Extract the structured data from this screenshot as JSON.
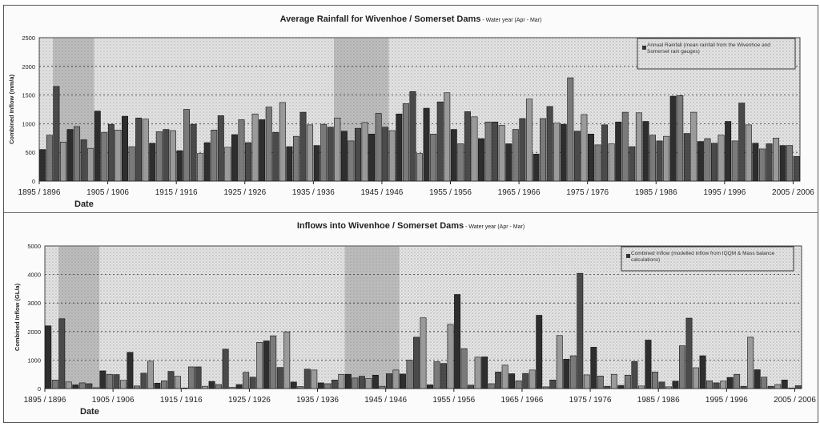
{
  "chart_data": [
    {
      "type": "bar",
      "title": "Average Rainfall for Wivenhoe / Somerset Dams",
      "subtitle": " - Water year (Apr - Mar)",
      "xlabel": "Date",
      "ylabel": "Combined Inflow (mm/a)",
      "ylim": [
        0,
        2500
      ],
      "yticks": [
        0,
        500,
        1000,
        1500,
        2000,
        2500
      ],
      "xtick_labels": [
        "1895 / 1896",
        "1905 / 1906",
        "1915 / 1916",
        "1925 / 1926",
        "1935 / 1936",
        "1945 / 1946",
        "1955 / 1956",
        "1965 / 1966",
        "1975 / 1976",
        "1985 / 1986",
        "1995 / 1996",
        "2005 / 2006"
      ],
      "legend": "Annual Rainfall (mean rainfall from the Wivenhoe and Somerset rain gauges)",
      "legend_position": "top-right",
      "grid": true,
      "shaded_periods": [
        [
          1897,
          1902
        ],
        [
          1938,
          1945
        ]
      ],
      "start_year": 1895,
      "values": [
        550,
        800,
        1650,
        680,
        900,
        950,
        720,
        570,
        1220,
        850,
        990,
        890,
        1130,
        600,
        1100,
        1080,
        660,
        860,
        900,
        880,
        530,
        1250,
        990,
        480,
        670,
        890,
        1140,
        590,
        810,
        1070,
        670,
        1170,
        1070,
        1290,
        850,
        1370,
        600,
        780,
        1200,
        980,
        620,
        990,
        940,
        1100,
        870,
        700,
        920,
        1020,
        820,
        1180,
        940,
        880,
        1170,
        1350,
        1560,
        480,
        1270,
        820,
        1380,
        1540,
        900,
        650,
        1210,
        1120,
        740,
        1030,
        1030,
        970,
        650,
        900,
        1090,
        1430,
        470,
        1090,
        1300,
        1010,
        990,
        1800,
        870,
        1160,
        820,
        630,
        980,
        650,
        1030,
        1200,
        600,
        1190,
        1040,
        800,
        700,
        780,
        1480,
        1490,
        830,
        1200,
        690,
        740,
        660,
        800,
        1040,
        700,
        1360,
        980,
        660,
        560,
        650,
        750,
        620,
        620,
        430
      ]
    },
    {
      "type": "bar",
      "title": "Inflows into Wivenhoe / Somerset Dams",
      "subtitle": " - Water year (Apr - Mar)",
      "xlabel": "Date",
      "ylabel": "Combined Inflow (GL/a)",
      "ylim": [
        0,
        5000
      ],
      "yticks": [
        0,
        1000,
        2000,
        3000,
        4000,
        5000
      ],
      "xtick_labels": [
        "1895 / 1896",
        "1905 / 1906",
        "1915 / 1916",
        "1925 / 1926",
        "1935 / 1936",
        "1945 / 1946",
        "1955 / 1956",
        "1965 / 1966",
        "1975 / 1976",
        "1985 / 1986",
        "1995 / 1996",
        "2005 / 2006"
      ],
      "legend": "Combined Inflow (modelled inflow from IQQM & Mass balance calculations)",
      "legend_position": "top-right",
      "grid": true,
      "shaded_periods": [
        [
          1897,
          1902
        ],
        [
          1939,
          1946
        ]
      ],
      "start_year": 1895,
      "values": [
        2200,
        300,
        2450,
        230,
        130,
        200,
        170,
        30,
        620,
        500,
        490,
        290,
        1270,
        90,
        540,
        960,
        190,
        270,
        600,
        430,
        20,
        760,
        760,
        80,
        250,
        140,
        1380,
        40,
        140,
        570,
        400,
        1620,
        1670,
        1850,
        740,
        1990,
        230,
        70,
        680,
        650,
        200,
        170,
        300,
        500,
        500,
        370,
        430,
        350,
        470,
        80,
        520,
        650,
        510,
        1000,
        1800,
        2480,
        130,
        940,
        880,
        2250,
        3300,
        1400,
        120,
        1100,
        1110,
        170,
        580,
        820,
        520,
        270,
        530,
        650,
        2570,
        60,
        300,
        1860,
        1030,
        1150,
        4040,
        480,
        1450,
        440,
        80,
        500,
        110,
        470,
        950,
        90,
        1700,
        580,
        230,
        60,
        260,
        1500,
        2470,
        730,
        1150,
        270,
        200,
        260,
        390,
        500,
        80,
        1800,
        660,
        400,
        80,
        140,
        300,
        20,
        100
      ]
    }
  ]
}
